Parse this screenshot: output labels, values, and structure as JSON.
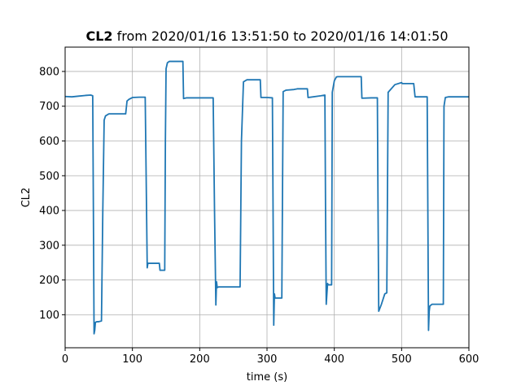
{
  "chart_data": {
    "type": "line",
    "title_bold": "CL2",
    "title_rest": " from 2020/01/16 13:51:50 to 2020/01/16 14:01:50",
    "xlabel": "time (s)",
    "ylabel": "CL2",
    "xlim": [
      0,
      600
    ],
    "ylim": [
      5,
      870
    ],
    "xticks": [
      0,
      100,
      200,
      300,
      400,
      500,
      600
    ],
    "yticks": [
      100,
      200,
      300,
      400,
      500,
      600,
      700,
      800
    ],
    "grid": true,
    "colors": {
      "line": "#1f77b4",
      "grid": "#b0b0b0"
    },
    "series": [
      {
        "x": [
          0,
          10,
          20,
          30,
          38,
          41,
          42,
          43,
          44,
          45,
          47,
          50,
          54,
          56,
          58,
          60,
          65,
          80,
          90,
          92,
          95,
          100,
          110,
          119,
          121,
          122,
          123,
          125,
          128,
          140,
          141,
          148,
          149,
          150,
          152,
          155,
          170,
          175,
          176,
          180,
          200,
          220,
          222,
          224,
          225,
          226,
          228,
          230,
          250,
          260,
          262,
          265,
          270,
          290,
          291,
          300,
          308,
          309,
          310,
          311,
          312,
          320,
          322,
          324,
          328,
          340,
          345,
          360,
          361,
          380,
          386,
          387,
          388,
          390,
          391,
          396,
          397,
          400,
          403,
          405,
          410,
          440,
          441,
          455,
          464,
          465,
          466,
          470,
          475,
          478,
          480,
          490,
          500,
          501,
          518,
          520,
          530,
          538,
          539,
          540,
          541,
          542,
          545,
          548,
          562,
          563,
          565,
          570,
          580,
          590,
          600
        ],
        "y": [
          728,
          727,
          729,
          731,
          732,
          730,
          400,
          45,
          55,
          78,
          80,
          80,
          82,
          400,
          660,
          672,
          678,
          678,
          678,
          715,
          720,
          725,
          726,
          726,
          400,
          235,
          248,
          248,
          248,
          248,
          228,
          228,
          600,
          808,
          825,
          829,
          829,
          829,
          722,
          724,
          724,
          724,
          400,
          128,
          195,
          178,
          180,
          180,
          180,
          180,
          600,
          770,
          776,
          776,
          725,
          725,
          724,
          400,
          70,
          160,
          148,
          148,
          148,
          742,
          746,
          748,
          750,
          750,
          725,
          730,
          732,
          400,
          130,
          190,
          186,
          186,
          740,
          773,
          784,
          785,
          785,
          785,
          723,
          724,
          724,
          400,
          110,
          130,
          160,
          163,
          740,
          762,
          768,
          765,
          765,
          727,
          727,
          727,
          400,
          55,
          110,
          125,
          130,
          130,
          130,
          700,
          725,
          727,
          727,
          727,
          727
        ]
      }
    ]
  }
}
